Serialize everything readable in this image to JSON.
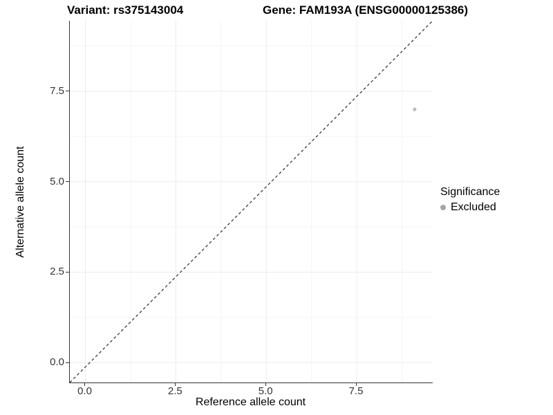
{
  "figure": {
    "background": "#ffffff"
  },
  "chart_data": {
    "type": "scatter",
    "titles": {
      "variant": "Variant: rs375143004",
      "gene": "Gene: FAM193A (ENSG00000125386)"
    },
    "xlabel": "Reference allele count",
    "ylabel": "Alternative allele count",
    "x_ticks": [
      0.0,
      2.5,
      5.0,
      7.5
    ],
    "x_tick_labels": [
      "0.0",
      "2.5",
      "5.0",
      "7.5"
    ],
    "y_ticks": [
      0.0,
      2.5,
      5.0,
      7.5
    ],
    "y_tick_labels": [
      "0.0",
      "2.5",
      "5.0",
      "7.5"
    ],
    "xlim": [
      -0.43,
      9.6
    ],
    "ylim": [
      -0.55,
      9.45
    ],
    "grid": {
      "major": true,
      "minor": true,
      "major_color": "#ececec",
      "minor_color": "#f5f5f5"
    },
    "axis_line_color": "#333333",
    "reference_line": {
      "equation": "y = x",
      "style": "dashed",
      "color": "#2a2a2a"
    },
    "series": [
      {
        "name": "Excluded",
        "color": "#bdbdbd",
        "point_radius": 2.6,
        "points": [
          {
            "x": 9.1,
            "y": 7.0
          }
        ]
      }
    ],
    "legend": {
      "title": "Significance",
      "position": "right",
      "items": [
        {
          "label": "Excluded",
          "color": "#a6a6a6"
        }
      ]
    }
  }
}
